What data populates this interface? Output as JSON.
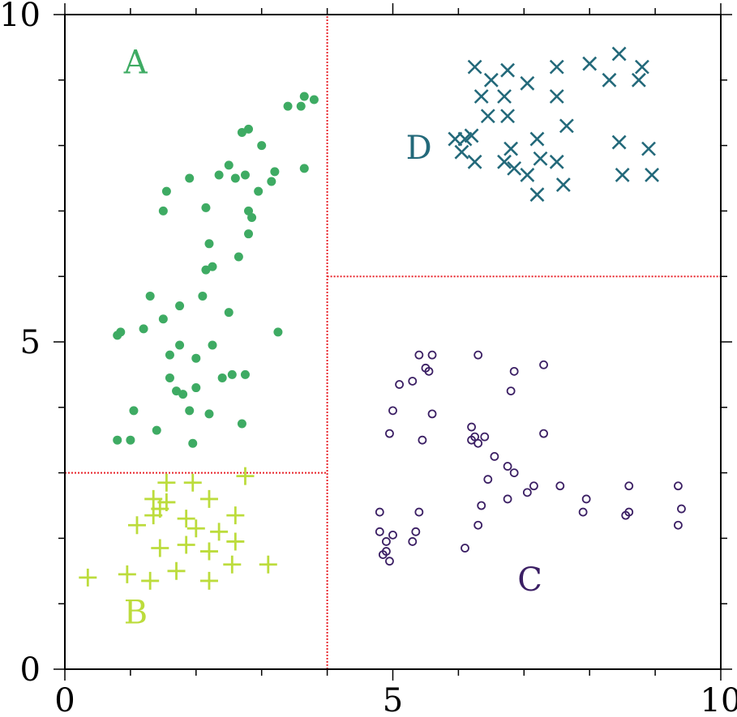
{
  "chart_data": {
    "type": "scatter",
    "xlim": [
      0,
      10
    ],
    "ylim": [
      0,
      10
    ],
    "x_ticks": [
      0,
      5,
      10
    ],
    "y_ticks": [
      0,
      5,
      10
    ],
    "x_tick_labels": [
      "0",
      "5",
      "10"
    ],
    "y_tick_labels": [
      "0",
      "5",
      "10"
    ],
    "minor_tick_step": 1,
    "grid": false,
    "dividers": [
      {
        "orientation": "vertical",
        "x": 4,
        "y_from": 0,
        "y_to": 10,
        "color": "#e8242b",
        "style": "dotted"
      },
      {
        "orientation": "horizontal",
        "y": 3,
        "x_from": 0,
        "x_to": 4,
        "color": "#e8242b",
        "style": "dotted"
      },
      {
        "orientation": "horizontal",
        "y": 6,
        "x_from": 4,
        "x_to": 10,
        "color": "#e8242b",
        "style": "dotted"
      }
    ],
    "annotations": [
      {
        "text": "A",
        "x": 0.9,
        "y": 9.1,
        "color": "#3eab63"
      },
      {
        "text": "B",
        "x": 0.9,
        "y": 0.7,
        "color": "#bcdc3c"
      },
      {
        "text": "C",
        "x": 6.9,
        "y": 1.2,
        "color": "#3b1f64"
      },
      {
        "text": "D",
        "x": 5.2,
        "y": 7.8,
        "color": "#23697a"
      }
    ],
    "series": [
      {
        "label": "A",
        "marker": "filled-circle",
        "color": "#3eab63",
        "points": [
          [
            0.8,
            3.5
          ],
          [
            1.0,
            3.5
          ],
          [
            1.4,
            3.65
          ],
          [
            1.05,
            3.95
          ],
          [
            1.9,
            3.95
          ],
          [
            2.2,
            3.9
          ],
          [
            2.7,
            3.75
          ],
          [
            1.95,
            3.45
          ],
          [
            1.8,
            4.2
          ],
          [
            1.7,
            4.25
          ],
          [
            2.0,
            4.3
          ],
          [
            1.6,
            4.45
          ],
          [
            2.4,
            4.45
          ],
          [
            2.55,
            4.5
          ],
          [
            2.75,
            4.5
          ],
          [
            1.6,
            4.8
          ],
          [
            1.75,
            4.95
          ],
          [
            2.0,
            4.75
          ],
          [
            2.25,
            4.95
          ],
          [
            0.8,
            5.1
          ],
          [
            0.85,
            5.15
          ],
          [
            1.2,
            5.2
          ],
          [
            1.5,
            5.35
          ],
          [
            1.75,
            5.55
          ],
          [
            2.5,
            5.45
          ],
          [
            3.25,
            5.15
          ],
          [
            1.3,
            5.7
          ],
          [
            2.1,
            5.7
          ],
          [
            2.15,
            6.1
          ],
          [
            2.25,
            6.15
          ],
          [
            2.65,
            6.3
          ],
          [
            2.2,
            6.5
          ],
          [
            2.8,
            6.65
          ],
          [
            2.85,
            6.9
          ],
          [
            2.8,
            7.0
          ],
          [
            1.5,
            7.0
          ],
          [
            2.15,
            7.05
          ],
          [
            1.55,
            7.3
          ],
          [
            1.9,
            7.5
          ],
          [
            2.35,
            7.55
          ],
          [
            2.5,
            7.7
          ],
          [
            2.6,
            7.5
          ],
          [
            2.75,
            7.55
          ],
          [
            2.95,
            7.3
          ],
          [
            3.15,
            7.45
          ],
          [
            3.2,
            7.6
          ],
          [
            3.65,
            7.65
          ],
          [
            2.7,
            8.2
          ],
          [
            2.8,
            8.25
          ],
          [
            3.0,
            8.0
          ],
          [
            3.4,
            8.6
          ],
          [
            3.6,
            8.6
          ],
          [
            3.65,
            8.75
          ],
          [
            3.8,
            8.7
          ]
        ]
      },
      {
        "label": "B",
        "marker": "plus",
        "color": "#bcdc3c",
        "points": [
          [
            0.35,
            1.4
          ],
          [
            0.95,
            1.45
          ],
          [
            1.3,
            1.35
          ],
          [
            1.7,
            1.5
          ],
          [
            2.2,
            1.35
          ],
          [
            2.55,
            1.6
          ],
          [
            3.1,
            1.6
          ],
          [
            1.1,
            2.2
          ],
          [
            1.35,
            2.35
          ],
          [
            1.45,
            2.45
          ],
          [
            1.55,
            2.55
          ],
          [
            1.35,
            2.6
          ],
          [
            1.55,
            2.85
          ],
          [
            1.95,
            2.85
          ],
          [
            2.2,
            2.6
          ],
          [
            1.85,
            2.3
          ],
          [
            2.0,
            2.15
          ],
          [
            2.35,
            2.1
          ],
          [
            2.6,
            1.95
          ],
          [
            2.6,
            2.35
          ],
          [
            1.45,
            1.85
          ],
          [
            1.85,
            1.9
          ],
          [
            2.2,
            1.8
          ],
          [
            2.75,
            2.95
          ]
        ]
      },
      {
        "label": "C",
        "marker": "open-circle",
        "color": "#3b1f64",
        "points": [
          [
            5.4,
            4.8
          ],
          [
            5.6,
            4.8
          ],
          [
            6.3,
            4.8
          ],
          [
            5.5,
            4.6
          ],
          [
            5.55,
            4.55
          ],
          [
            6.85,
            4.55
          ],
          [
            7.3,
            4.65
          ],
          [
            5.1,
            4.35
          ],
          [
            5.3,
            4.4
          ],
          [
            6.8,
            4.25
          ],
          [
            5.0,
            3.95
          ],
          [
            5.6,
            3.9
          ],
          [
            4.95,
            3.6
          ],
          [
            5.45,
            3.5
          ],
          [
            6.2,
            3.7
          ],
          [
            6.2,
            3.5
          ],
          [
            6.25,
            3.55
          ],
          [
            6.3,
            3.45
          ],
          [
            6.4,
            3.55
          ],
          [
            7.3,
            3.6
          ],
          [
            6.55,
            3.25
          ],
          [
            6.75,
            3.1
          ],
          [
            6.85,
            3.0
          ],
          [
            6.45,
            2.9
          ],
          [
            7.15,
            2.8
          ],
          [
            7.55,
            2.8
          ],
          [
            8.6,
            2.8
          ],
          [
            9.35,
            2.8
          ],
          [
            7.05,
            2.7
          ],
          [
            6.75,
            2.6
          ],
          [
            7.95,
            2.6
          ],
          [
            6.35,
            2.5
          ],
          [
            5.4,
            2.4
          ],
          [
            4.8,
            2.4
          ],
          [
            7.9,
            2.4
          ],
          [
            8.55,
            2.35
          ],
          [
            8.6,
            2.4
          ],
          [
            9.4,
            2.45
          ],
          [
            6.3,
            2.2
          ],
          [
            9.35,
            2.2
          ],
          [
            4.8,
            2.1
          ],
          [
            5.0,
            2.05
          ],
          [
            5.35,
            2.1
          ],
          [
            4.85,
            1.75
          ],
          [
            4.9,
            1.8
          ],
          [
            5.3,
            1.95
          ],
          [
            4.95,
            1.65
          ],
          [
            6.1,
            1.85
          ],
          [
            4.9,
            1.95
          ]
        ]
      },
      {
        "label": "D",
        "marker": "x",
        "color": "#23697a",
        "points": [
          [
            6.25,
            9.2
          ],
          [
            6.5,
            9.0
          ],
          [
            6.75,
            9.15
          ],
          [
            7.05,
            8.95
          ],
          [
            7.5,
            9.2
          ],
          [
            8.0,
            9.25
          ],
          [
            8.3,
            9.0
          ],
          [
            8.45,
            9.4
          ],
          [
            8.8,
            9.2
          ],
          [
            8.75,
            9.0
          ],
          [
            6.35,
            8.75
          ],
          [
            6.7,
            8.75
          ],
          [
            7.5,
            8.75
          ],
          [
            6.45,
            8.45
          ],
          [
            6.75,
            8.45
          ],
          [
            7.65,
            8.3
          ],
          [
            5.95,
            8.1
          ],
          [
            6.1,
            8.1
          ],
          [
            6.2,
            8.15
          ],
          [
            7.2,
            8.1
          ],
          [
            8.45,
            8.05
          ],
          [
            8.9,
            7.95
          ],
          [
            6.05,
            7.9
          ],
          [
            6.8,
            7.95
          ],
          [
            6.25,
            7.75
          ],
          [
            6.7,
            7.75
          ],
          [
            6.85,
            7.65
          ],
          [
            7.05,
            7.55
          ],
          [
            7.5,
            7.75
          ],
          [
            7.25,
            7.8
          ],
          [
            7.2,
            7.25
          ],
          [
            7.6,
            7.4
          ],
          [
            8.5,
            7.55
          ],
          [
            8.95,
            7.55
          ]
        ]
      }
    ]
  }
}
